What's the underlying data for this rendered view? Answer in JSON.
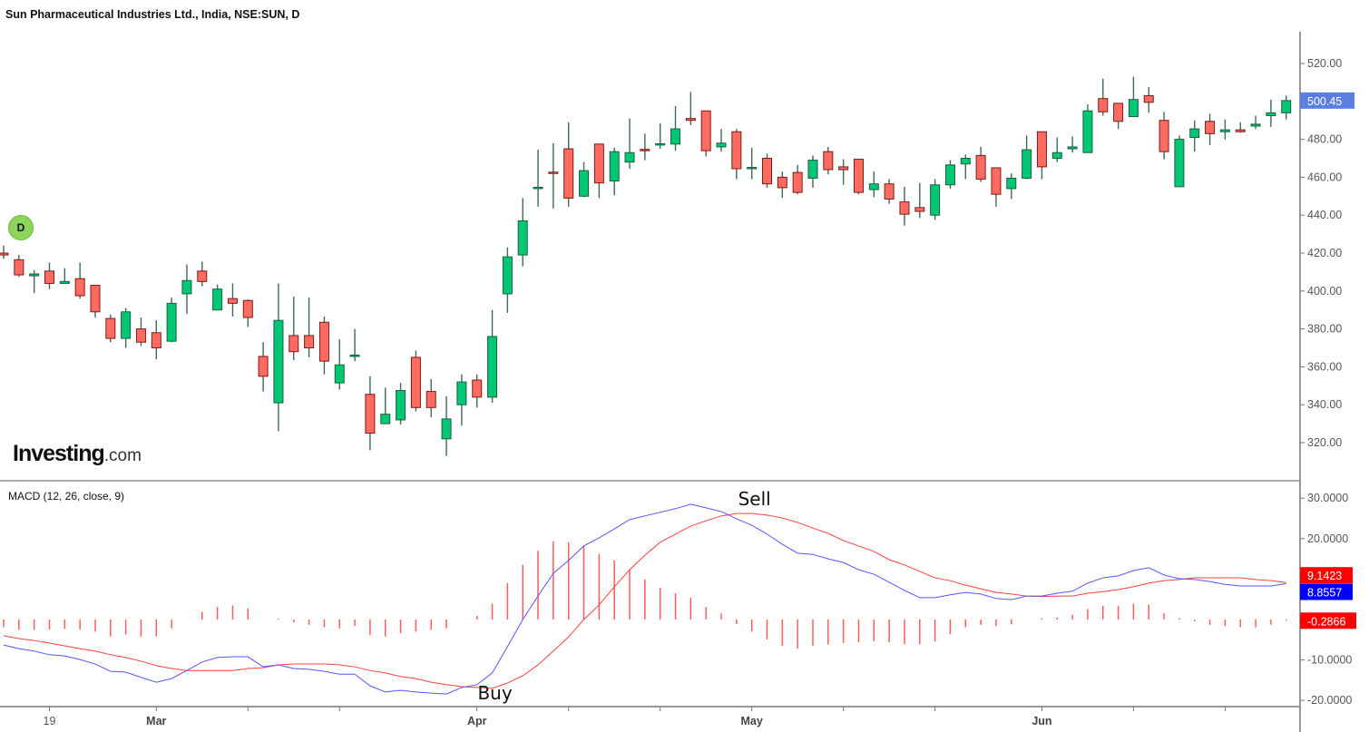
{
  "header": {
    "title": "Sun Pharmaceutical Industries Ltd., India, NSE:SUN, D",
    "interval_badge": "D"
  },
  "logo": {
    "main": "Investing",
    "suffix": ".com"
  },
  "colors": {
    "up": "#00c774",
    "down": "#ff6b61",
    "macd_line": "#5555ff",
    "signal_line": "#ff4040",
    "histogram": "#ff4040",
    "last_price_tag": "#5b7fe0"
  },
  "chart_data": [
    {
      "type": "candlestick",
      "title": "Sun Pharmaceutical Industries Ltd., India, NSE:SUN, D",
      "ylim": [
        305,
        535
      ],
      "y_ticks": [
        320,
        340,
        360,
        380,
        400,
        420,
        440,
        460,
        480,
        520
      ],
      "y_tick_labels": [
        "320.00",
        "340.00",
        "360.00",
        "380.00",
        "400.00",
        "420.00",
        "440.00",
        "460.00",
        "480.00",
        "520.00"
      ],
      "last_price": "500.45",
      "x_ticks": [
        {
          "label": "19",
          "index": 3,
          "bold": false
        },
        {
          "label": "Mar",
          "index": 10,
          "bold": true
        },
        {
          "label": "",
          "index": 16
        },
        {
          "label": "",
          "index": 22
        },
        {
          "label": "Apr",
          "index": 31,
          "bold": true
        },
        {
          "label": "",
          "index": 37
        },
        {
          "label": "",
          "index": 43
        },
        {
          "label": "May",
          "index": 49,
          "bold": true
        },
        {
          "label": "",
          "index": 55
        },
        {
          "label": "",
          "index": 61
        },
        {
          "label": "Jun",
          "index": 68,
          "bold": true
        },
        {
          "label": "",
          "index": 74
        },
        {
          "label": "",
          "index": 80
        }
      ],
      "ohlc": [
        [
          420,
          424,
          417,
          419
        ],
        [
          416.5,
          419,
          407.5,
          408.5
        ],
        [
          408,
          411,
          399,
          409
        ],
        [
          410.5,
          415,
          401,
          404
        ],
        [
          404,
          412,
          404,
          405
        ],
        [
          406.5,
          415,
          396,
          397.5
        ],
        [
          403,
          403,
          386,
          389
        ],
        [
          385.5,
          387.5,
          373,
          375
        ],
        [
          375,
          391,
          370,
          389
        ],
        [
          380,
          386,
          371,
          373
        ],
        [
          378,
          384.5,
          364,
          370
        ],
        [
          373.5,
          396.5,
          373,
          393.5
        ],
        [
          398.5,
          414,
          388,
          405.5
        ],
        [
          410.5,
          415.5,
          402.5,
          405
        ],
        [
          390,
          403.5,
          390,
          401
        ],
        [
          396,
          404,
          386.5,
          393.5
        ],
        [
          395,
          395.5,
          381,
          386
        ],
        [
          365.5,
          373,
          347,
          355
        ],
        [
          341,
          404,
          326,
          384.5
        ],
        [
          376.5,
          397,
          363.5,
          368
        ],
        [
          376.5,
          396.5,
          365,
          370
        ],
        [
          383.5,
          386.5,
          356,
          363
        ],
        [
          351.5,
          374.5,
          348,
          361
        ],
        [
          365.8,
          380,
          363,
          366.2
        ],
        [
          345.5,
          355,
          316,
          325
        ],
        [
          330,
          349,
          330,
          335
        ],
        [
          332,
          351.5,
          329.5,
          347.5
        ],
        [
          365,
          368.5,
          336.5,
          338.5
        ],
        [
          347,
          353.5,
          333.5,
          338.5
        ],
        [
          322,
          344.5,
          313,
          332.5
        ],
        [
          340,
          356,
          329,
          352
        ],
        [
          353,
          356,
          338.5,
          344
        ],
        [
          344,
          390,
          341,
          376
        ],
        [
          398.5,
          423,
          388.5,
          418
        ],
        [
          419,
          449,
          413,
          437
        ],
        [
          454.3,
          474.5,
          444.5,
          454.7
        ],
        [
          462.7,
          478,
          443.5,
          462.3
        ],
        [
          475,
          489,
          444.5,
          449
        ],
        [
          450,
          468,
          449.5,
          463.5
        ],
        [
          477.5,
          477.5,
          449,
          457
        ],
        [
          458,
          475.5,
          450.5,
          473.5
        ],
        [
          468,
          491,
          464.5,
          473
        ],
        [
          474.7,
          483,
          469,
          474.3
        ],
        [
          477.3,
          488.5,
          475,
          477.7
        ],
        [
          477.5,
          497.5,
          474,
          485.5
        ],
        [
          491,
          505,
          487.5,
          490
        ],
        [
          495,
          495,
          471,
          474
        ],
        [
          476,
          485.5,
          473.5,
          478
        ],
        [
          484,
          485.5,
          459,
          464.5
        ],
        [
          464.8,
          475.5,
          459,
          465.2
        ],
        [
          470,
          472.5,
          454.5,
          456.5
        ],
        [
          460,
          463,
          449,
          454.5
        ],
        [
          462.5,
          466.5,
          451,
          452
        ],
        [
          459.5,
          471.5,
          454.5,
          469
        ],
        [
          473.5,
          476,
          461.5,
          464
        ],
        [
          465.5,
          469.5,
          456,
          464
        ],
        [
          469.5,
          469.5,
          451,
          452
        ],
        [
          453.5,
          463,
          449.5,
          456.5
        ],
        [
          456.5,
          459,
          446,
          448.5
        ],
        [
          447,
          455,
          434.5,
          440.5
        ],
        [
          444,
          457,
          438.5,
          442
        ],
        [
          440,
          459,
          437.5,
          456
        ],
        [
          456,
          469,
          454,
          466.5
        ],
        [
          467,
          472,
          459,
          470
        ],
        [
          471.5,
          476,
          457.5,
          459
        ],
        [
          465,
          465,
          444.5,
          451
        ],
        [
          454,
          462,
          448.5,
          459.5
        ],
        [
          459.5,
          482,
          459,
          474.5
        ],
        [
          484,
          484,
          459,
          465.5
        ],
        [
          470,
          481,
          468,
          473
        ],
        [
          475,
          481.5,
          473,
          476
        ],
        [
          473,
          498.5,
          473,
          495
        ],
        [
          501.5,
          512,
          492.5,
          494.5
        ],
        [
          499,
          499,
          485.5,
          489.5
        ],
        [
          492,
          513,
          492,
          501
        ],
        [
          503,
          507.5,
          494,
          499.5
        ],
        [
          490,
          494.5,
          469.5,
          473.5
        ],
        [
          455,
          482,
          455,
          480
        ],
        [
          481,
          490,
          473.5,
          485.5
        ],
        [
          489.5,
          493.5,
          477,
          483
        ],
        [
          484,
          490.5,
          480,
          485
        ],
        [
          485,
          489,
          483.5,
          484
        ],
        [
          487,
          492.5,
          485.5,
          488
        ],
        [
          492.5,
          501,
          486.5,
          494
        ],
        [
          494,
          503,
          490.5,
          500.45
        ]
      ]
    },
    {
      "type": "line+bar",
      "title": "MACD (12, 26, close, 9)",
      "ylim": [
        -22,
        33
      ],
      "y_ticks": [
        30,
        20,
        -10,
        -20
      ],
      "y_tick_labels": [
        "30.0000",
        "20.0000",
        "-10.0000",
        "-20.0000"
      ],
      "last_values": {
        "signal": "9.1423",
        "macd": "8.8557",
        "histogram": "-0.2866"
      },
      "series": [
        {
          "key": "macd",
          "values": [
            -6.3,
            -7.2,
            -7.8,
            -8.7,
            -9.0,
            -9.9,
            -11.0,
            -12.8,
            -13.0,
            -14.3,
            -15.5,
            -14.6,
            -12.6,
            -10.5,
            -9.4,
            -9.2,
            -9.2,
            -11.7,
            -11.2,
            -12.1,
            -12.3,
            -12.8,
            -13.5,
            -13.5,
            -16.4,
            -17.9,
            -17.5,
            -17.9,
            -18.2,
            -18.4,
            -16.8,
            -16.1,
            -13.2,
            -6.7,
            0,
            5.8,
            11.4,
            14.6,
            18.2,
            20.2,
            22.4,
            24.7,
            25.6,
            26.5,
            27.4,
            28.5,
            27.6,
            26.7,
            24.9,
            23.3,
            21.1,
            18.6,
            16.4,
            16.1,
            15.0,
            14.1,
            12.3,
            11.2,
            9.2,
            7.2,
            5.4,
            5.4,
            6.1,
            6.7,
            6.3,
            5.2,
            4.9,
            5.8,
            5.8,
            6.5,
            7.0,
            9.0,
            10.3,
            10.8,
            12.1,
            12.8,
            11.0,
            10.1,
            9.9,
            9.4,
            8.7,
            8.3,
            8.3,
            8.3,
            8.8557
          ]
        },
        {
          "key": "signal",
          "values": [
            -4.0,
            -4.7,
            -5.2,
            -5.8,
            -6.5,
            -7.2,
            -7.8,
            -8.7,
            -9.4,
            -10.3,
            -11.4,
            -12.1,
            -12.6,
            -12.6,
            -12.6,
            -12.6,
            -12.1,
            -11.9,
            -11.2,
            -11.0,
            -11.0,
            -11.0,
            -11.2,
            -11.7,
            -12.6,
            -13.2,
            -14.1,
            -14.6,
            -15.5,
            -16.1,
            -16.6,
            -16.8,
            -17.0,
            -15.7,
            -13.9,
            -11.2,
            -7.8,
            -4.3,
            0,
            3.6,
            8.1,
            12.3,
            15.9,
            19.1,
            21.1,
            23.1,
            24.4,
            25.6,
            26.2,
            26.2,
            25.8,
            25.1,
            24.0,
            22.6,
            21.3,
            19.5,
            18.2,
            16.8,
            14.8,
            13.5,
            11.9,
            10.3,
            9.6,
            8.5,
            7.6,
            6.7,
            6.3,
            5.8,
            5.7,
            5.8,
            5.8,
            6.5,
            6.9,
            7.4,
            8.1,
            9.0,
            9.6,
            9.9,
            10.3,
            10.3,
            10.3,
            10.3,
            9.9,
            9.6,
            9.1423
          ]
        },
        {
          "key": "histogram",
          "values": [
            -1.9,
            -2.5,
            -2.5,
            -2.5,
            -2.3,
            -2.5,
            -3.0,
            -4.2,
            -3.7,
            -4.2,
            -4.2,
            -2.2,
            0,
            1.9,
            3.1,
            3.5,
            2.8,
            0,
            0.2,
            -0.7,
            -1.3,
            -1.9,
            -2.2,
            -1.6,
            -3.9,
            -4.2,
            -3.4,
            -3.0,
            -2.5,
            -2.2,
            0,
            0.9,
            3.9,
            9.0,
            13.5,
            17.0,
            19.3,
            19.1,
            18.3,
            16.2,
            14.6,
            12.3,
            9.9,
            7.8,
            6.5,
            5.4,
            3.1,
            1.5,
            -1.1,
            -3.0,
            -4.9,
            -6.5,
            -7.2,
            -6.5,
            -6.2,
            -5.8,
            -5.6,
            -5.4,
            -5.6,
            -6.1,
            -6.1,
            -5.4,
            -3.6,
            -1.9,
            -1.3,
            -1.6,
            -1.2,
            0,
            0.3,
            0.5,
            1.1,
            2.6,
            3.4,
            3.4,
            3.9,
            3.7,
            1.6,
            0.3,
            -0.4,
            -1.3,
            -1.6,
            -1.9,
            -1.9,
            -1.3,
            -0.2866
          ]
        }
      ],
      "annotations": [
        {
          "text": "Buy",
          "index": 32,
          "value": -18.2
        },
        {
          "text": "Sell",
          "index": 49,
          "value": 29.8
        }
      ]
    }
  ]
}
